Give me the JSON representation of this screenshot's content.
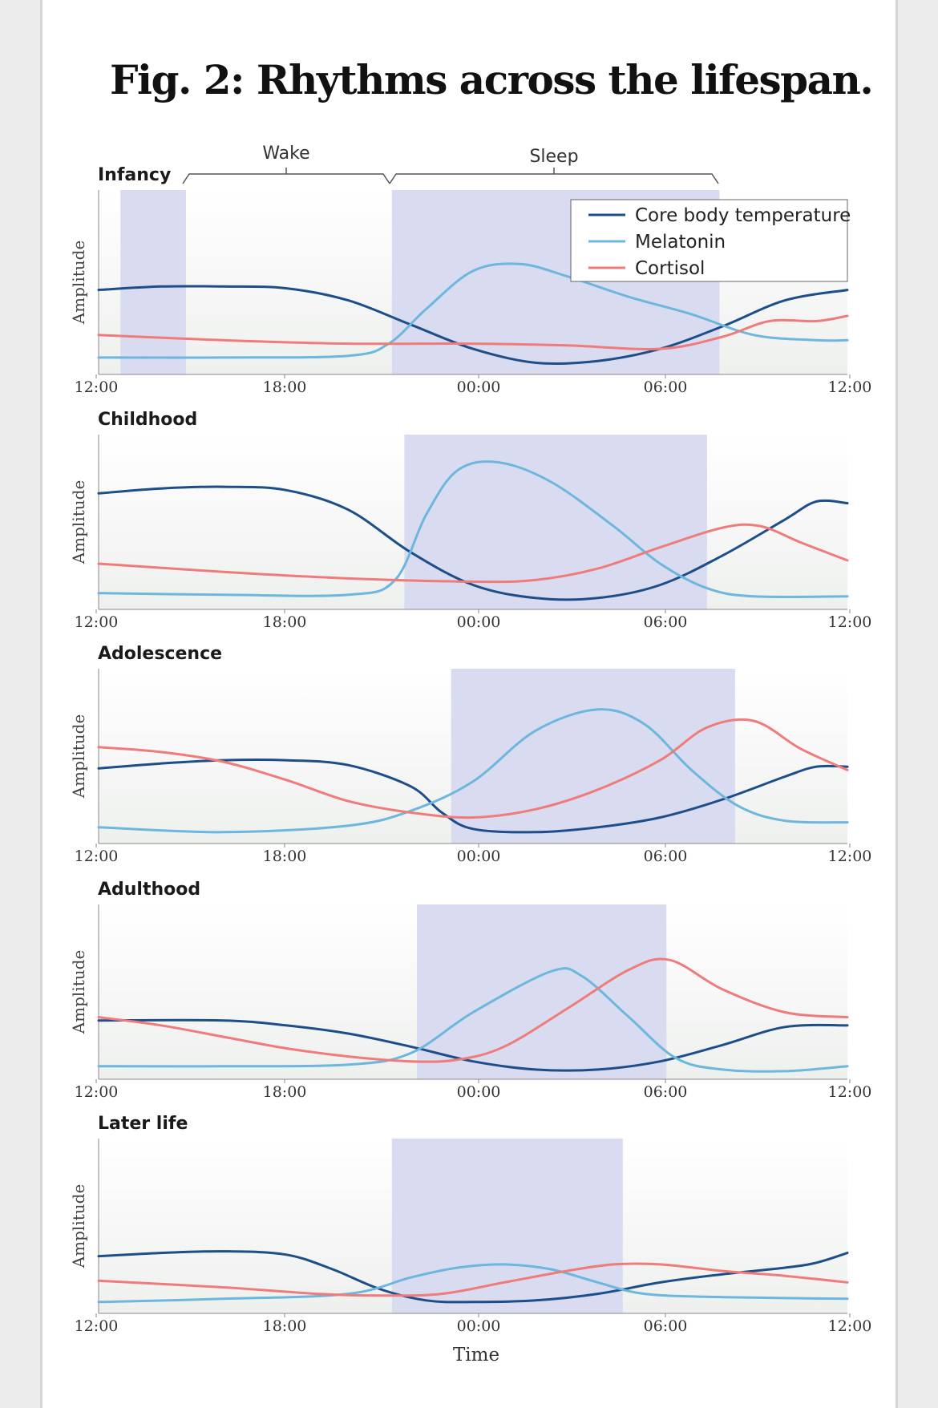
{
  "title": "Fig. 2: Rhythms across the lifespan.",
  "colors": {
    "core": "#1d4e89",
    "melatonin": "#6db6dd",
    "cortisol": "#ef7b7b",
    "sleep_band": "#d9dbf0"
  },
  "annotations": {
    "wake": "Wake",
    "sleep": "Sleep"
  },
  "chart_data": {
    "type": "line",
    "xlabel": "Time",
    "ylabel": "Amplitude",
    "x_ticks": [
      "12:00",
      "18:00",
      "00:00",
      "06:00",
      "12:00"
    ],
    "x_domain_hours": [
      12,
      36
    ],
    "ylim": [
      0,
      1
    ],
    "legend": {
      "position": "top-right",
      "entries": [
        "Core body temperature",
        "Melatonin",
        "Cortisol"
      ]
    },
    "panels": [
      {
        "label": "Infancy",
        "sleep_bands": [
          [
            12.7,
            14.8
          ],
          [
            21.4,
            31.9
          ]
        ],
        "series": [
          {
            "name": "Core body temperature",
            "color": "#1d4e89",
            "points": [
              [
                12,
                0.46
              ],
              [
                14,
                0.48
              ],
              [
                16,
                0.48
              ],
              [
                18,
                0.47
              ],
              [
                20,
                0.4
              ],
              [
                22,
                0.26
              ],
              [
                24,
                0.12
              ],
              [
                26,
                0.04
              ],
              [
                28,
                0.05
              ],
              [
                30,
                0.12
              ],
              [
                32,
                0.25
              ],
              [
                34,
                0.4
              ],
              [
                36,
                0.46
              ]
            ]
          },
          {
            "name": "Melatonin",
            "color": "#6db6dd",
            "points": [
              [
                12,
                0.07
              ],
              [
                16,
                0.07
              ],
              [
                20,
                0.08
              ],
              [
                21.3,
                0.15
              ],
              [
                22.5,
                0.35
              ],
              [
                24,
                0.57
              ],
              [
                25.5,
                0.61
              ],
              [
                27,
                0.54
              ],
              [
                29,
                0.42
              ],
              [
                31,
                0.32
              ],
              [
                33,
                0.2
              ],
              [
                35,
                0.17
              ],
              [
                36,
                0.17
              ]
            ]
          },
          {
            "name": "Cortisol",
            "color": "#ef7b7b",
            "points": [
              [
                12,
                0.2
              ],
              [
                16,
                0.17
              ],
              [
                20,
                0.15
              ],
              [
                24,
                0.15
              ],
              [
                27,
                0.14
              ],
              [
                30,
                0.12
              ],
              [
                32,
                0.19
              ],
              [
                33.5,
                0.28
              ],
              [
                35,
                0.28
              ],
              [
                36,
                0.31
              ]
            ]
          }
        ]
      },
      {
        "label": "Childhood",
        "sleep_bands": [
          [
            21.8,
            31.5
          ]
        ],
        "series": [
          {
            "name": "Core body temperature",
            "color": "#1d4e89",
            "points": [
              [
                12,
                0.68
              ],
              [
                14,
                0.71
              ],
              [
                16,
                0.72
              ],
              [
                18,
                0.7
              ],
              [
                20,
                0.58
              ],
              [
                22,
                0.32
              ],
              [
                24,
                0.12
              ],
              [
                26,
                0.04
              ],
              [
                28,
                0.04
              ],
              [
                30,
                0.12
              ],
              [
                32,
                0.3
              ],
              [
                34,
                0.52
              ],
              [
                35,
                0.63
              ],
              [
                36,
                0.62
              ]
            ]
          },
          {
            "name": "Melatonin",
            "color": "#6db6dd",
            "points": [
              [
                12,
                0.07
              ],
              [
                16,
                0.06
              ],
              [
                20,
                0.06
              ],
              [
                21.5,
                0.15
              ],
              [
                22.5,
                0.55
              ],
              [
                23.5,
                0.82
              ],
              [
                24.8,
                0.87
              ],
              [
                26.5,
                0.75
              ],
              [
                28.5,
                0.48
              ],
              [
                30,
                0.25
              ],
              [
                31.5,
                0.1
              ],
              [
                33,
                0.05
              ],
              [
                36,
                0.05
              ]
            ]
          },
          {
            "name": "Cortisol",
            "color": "#ef7b7b",
            "points": [
              [
                12,
                0.25
              ],
              [
                16,
                0.2
              ],
              [
                20,
                0.16
              ],
              [
                24,
                0.14
              ],
              [
                26,
                0.15
              ],
              [
                28,
                0.22
              ],
              [
                30,
                0.35
              ],
              [
                32,
                0.47
              ],
              [
                33.2,
                0.48
              ],
              [
                34.5,
                0.38
              ],
              [
                36,
                0.27
              ]
            ]
          }
        ]
      },
      {
        "label": "Adolescence",
        "sleep_bands": [
          [
            23.3,
            32.4
          ]
        ],
        "series": [
          {
            "name": "Core body temperature",
            "color": "#1d4e89",
            "points": [
              [
                12,
                0.43
              ],
              [
                14,
                0.46
              ],
              [
                16,
                0.48
              ],
              [
                18,
                0.48
              ],
              [
                20,
                0.45
              ],
              [
                22,
                0.32
              ],
              [
                23,
                0.16
              ],
              [
                24,
                0.06
              ],
              [
                26,
                0.04
              ],
              [
                28,
                0.07
              ],
              [
                30,
                0.13
              ],
              [
                32,
                0.24
              ],
              [
                34,
                0.38
              ],
              [
                35,
                0.44
              ],
              [
                36,
                0.44
              ]
            ]
          },
          {
            "name": "Melatonin",
            "color": "#6db6dd",
            "points": [
              [
                12,
                0.07
              ],
              [
                16,
                0.04
              ],
              [
                20,
                0.08
              ],
              [
                22,
                0.17
              ],
              [
                24,
                0.35
              ],
              [
                26,
                0.66
              ],
              [
                28,
                0.79
              ],
              [
                29.5,
                0.7
              ],
              [
                31,
                0.42
              ],
              [
                32.5,
                0.2
              ],
              [
                34,
                0.11
              ],
              [
                36,
                0.1
              ]
            ]
          },
          {
            "name": "Cortisol",
            "color": "#ef7b7b",
            "points": [
              [
                12,
                0.56
              ],
              [
                14,
                0.53
              ],
              [
                16,
                0.47
              ],
              [
                18,
                0.36
              ],
              [
                20,
                0.23
              ],
              [
                22,
                0.16
              ],
              [
                24,
                0.13
              ],
              [
                26,
                0.18
              ],
              [
                28,
                0.3
              ],
              [
                30,
                0.48
              ],
              [
                31.5,
                0.68
              ],
              [
                33,
                0.72
              ],
              [
                34.5,
                0.55
              ],
              [
                36,
                0.42
              ]
            ]
          }
        ]
      },
      {
        "label": "Adulthood",
        "sleep_bands": [
          [
            22.2,
            30.2
          ]
        ],
        "series": [
          {
            "name": "Core body temperature",
            "color": "#1d4e89",
            "points": [
              [
                12,
                0.33
              ],
              [
                16,
                0.33
              ],
              [
                18,
                0.3
              ],
              [
                20,
                0.25
              ],
              [
                22,
                0.17
              ],
              [
                24,
                0.08
              ],
              [
                26,
                0.03
              ],
              [
                28,
                0.03
              ],
              [
                30,
                0.08
              ],
              [
                32,
                0.18
              ],
              [
                34,
                0.29
              ],
              [
                36,
                0.3
              ]
            ]
          },
          {
            "name": "Melatonin",
            "color": "#6db6dd",
            "points": [
              [
                12,
                0.05
              ],
              [
                16,
                0.05
              ],
              [
                20,
                0.06
              ],
              [
                22,
                0.13
              ],
              [
                24,
                0.38
              ],
              [
                26.5,
                0.63
              ],
              [
                27.5,
                0.6
              ],
              [
                29,
                0.35
              ],
              [
                30.5,
                0.1
              ],
              [
                32,
                0.03
              ],
              [
                34,
                0.02
              ],
              [
                36,
                0.05
              ]
            ]
          },
          {
            "name": "Cortisol",
            "color": "#ef7b7b",
            "points": [
              [
                12,
                0.35
              ],
              [
                14,
                0.3
              ],
              [
                16,
                0.23
              ],
              [
                18,
                0.16
              ],
              [
                20,
                0.11
              ],
              [
                22,
                0.08
              ],
              [
                23.5,
                0.09
              ],
              [
                25,
                0.17
              ],
              [
                27,
                0.4
              ],
              [
                29,
                0.64
              ],
              [
                30.3,
                0.7
              ],
              [
                32,
                0.52
              ],
              [
                34,
                0.38
              ],
              [
                36,
                0.35
              ]
            ]
          }
        ]
      },
      {
        "label": "Later life",
        "sleep_bands": [
          [
            21.4,
            28.8
          ]
        ],
        "series": [
          {
            "name": "Core body temperature",
            "color": "#1d4e89",
            "points": [
              [
                12,
                0.32
              ],
              [
                14,
                0.34
              ],
              [
                16,
                0.35
              ],
              [
                18,
                0.33
              ],
              [
                19.5,
                0.24
              ],
              [
                21,
                0.12
              ],
              [
                22.5,
                0.05
              ],
              [
                24,
                0.04
              ],
              [
                26,
                0.05
              ],
              [
                28,
                0.09
              ],
              [
                30,
                0.16
              ],
              [
                32,
                0.21
              ],
              [
                34,
                0.25
              ],
              [
                35,
                0.28
              ],
              [
                36,
                0.34
              ]
            ]
          },
          {
            "name": "Melatonin",
            "color": "#6db6dd",
            "points": [
              [
                12,
                0.04
              ],
              [
                16,
                0.06
              ],
              [
                20,
                0.09
              ],
              [
                22,
                0.19
              ],
              [
                23.5,
                0.25
              ],
              [
                25,
                0.27
              ],
              [
                26.5,
                0.24
              ],
              [
                28,
                0.16
              ],
              [
                29.5,
                0.09
              ],
              [
                32,
                0.07
              ],
              [
                36,
                0.06
              ]
            ]
          },
          {
            "name": "Cortisol",
            "color": "#ef7b7b",
            "points": [
              [
                12,
                0.17
              ],
              [
                16,
                0.13
              ],
              [
                19,
                0.09
              ],
              [
                21,
                0.08
              ],
              [
                23,
                0.09
              ],
              [
                25,
                0.16
              ],
              [
                27,
                0.23
              ],
              [
                28.5,
                0.27
              ],
              [
                30,
                0.27
              ],
              [
                32,
                0.23
              ],
              [
                34,
                0.2
              ],
              [
                36,
                0.16
              ]
            ]
          }
        ]
      }
    ]
  }
}
